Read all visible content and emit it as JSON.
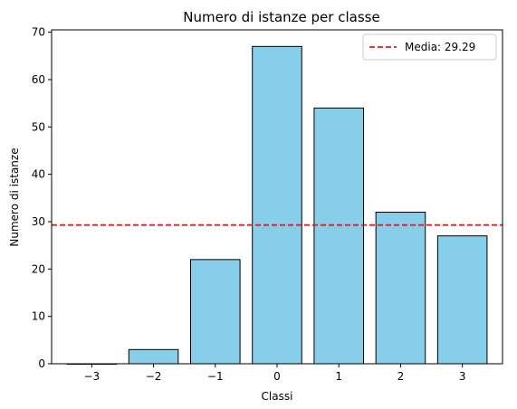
{
  "chart_data": {
    "type": "bar",
    "title": "Numero di istanze per classe",
    "xlabel": "Classi",
    "ylabel": "Numero di istanze",
    "categories": [
      -3,
      -2,
      -1,
      0,
      1,
      2,
      3
    ],
    "x_tick_labels": [
      "−3",
      "−2",
      "−1",
      "0",
      "1",
      "2",
      "3"
    ],
    "values": [
      0,
      3,
      22,
      67,
      54,
      32,
      27
    ],
    "xlim": [
      -3.65,
      3.65
    ],
    "ylim": [
      0,
      70.5
    ],
    "y_ticks": [
      0,
      10,
      20,
      30,
      40,
      50,
      60,
      70
    ],
    "y_tick_labels": [
      "0",
      "10",
      "20",
      "30",
      "40",
      "50",
      "60",
      "70"
    ],
    "mean_line": {
      "value": 29.29,
      "label": "Media: 29.29",
      "style": "dashed"
    },
    "legend_position": "top-right",
    "grid": false
  },
  "colors": {
    "bar_fill": "#87CEEB",
    "bar_edge": "#000000",
    "mean_line": "#E41A1C"
  }
}
